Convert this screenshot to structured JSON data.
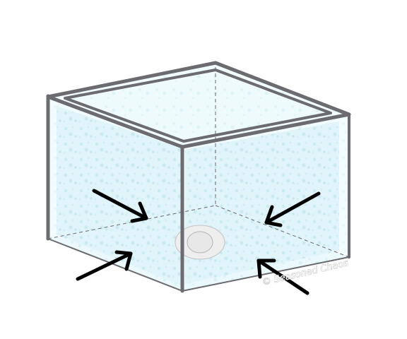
{
  "diagram": {
    "subject": "open-top glass box with arrows pointing inward toward center",
    "watermark": "© Seasoned Chaos",
    "colors": {
      "frame": "#6b6b70",
      "glass": "#dcf3f8",
      "glass_bubble": "#c9e9f1",
      "arrow": "#000000",
      "dashed_edge": "#6b6b70",
      "center_disc": "#efefef"
    }
  }
}
